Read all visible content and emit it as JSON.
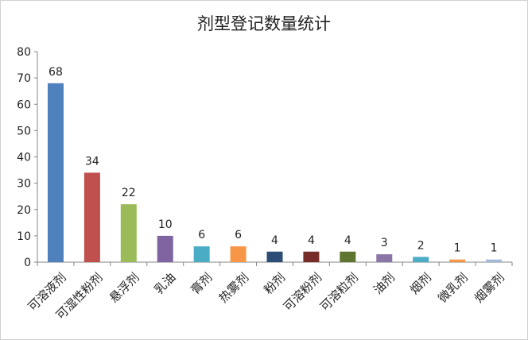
{
  "chart_data": {
    "type": "bar",
    "title": "剂型登记数量统计",
    "xlabel": "",
    "ylabel": "",
    "ylim": [
      0,
      80
    ],
    "yticks": [
      0,
      10,
      20,
      30,
      40,
      50,
      60,
      70,
      80
    ],
    "grid": false,
    "legend": "none",
    "categories": [
      "可溶液剂",
      "可湿性粉剂",
      "悬浮剂",
      "乳油",
      "膏剂",
      "热雾剂",
      "粉剂",
      "可溶粉剂",
      "可溶粒剂",
      "油剂",
      "烟剂",
      "微乳剂",
      "烟雾剂"
    ],
    "values": [
      68,
      34,
      22,
      10,
      6,
      6,
      4,
      4,
      4,
      3,
      2,
      1,
      1
    ],
    "colors": [
      "#4f81bd",
      "#c0504d",
      "#9bbb59",
      "#8064a2",
      "#4bacc6",
      "#f79646",
      "#2c4d75",
      "#772c2a",
      "#5f7530",
      "#8a75a6",
      "#4bacc6",
      "#f79646",
      "#a5b9d8"
    ]
  }
}
